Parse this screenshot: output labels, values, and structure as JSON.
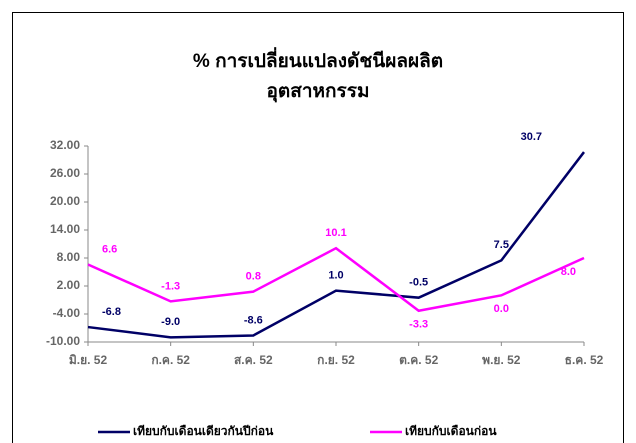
{
  "chart_data": {
    "type": "line",
    "title": [
      "% การเปลี่ยนแปลงดัชนีผลผลิต",
      "อุตสาหกรรม"
    ],
    "categories": [
      "มิ.ย. 52",
      "ก.ค. 52",
      "ส.ค. 52",
      "ก.ย. 52",
      "ต.ค. 52",
      "พ.ย. 52",
      "ธ.ค. 52"
    ],
    "series": [
      {
        "name": "เทียบกับเดือนเดียวกันปีก่อน",
        "color": "#000066",
        "values": [
          -6.8,
          -9.0,
          -8.6,
          1.0,
          -0.5,
          7.5,
          30.7
        ],
        "value_labels": [
          "-6.8",
          "-9.0",
          "-8.6",
          "1.0",
          "-0.5",
          "7.5",
          "30.7"
        ]
      },
      {
        "name": "เทียบกับเดือนก่อน",
        "color": "#ff00ff",
        "values": [
          6.6,
          -1.3,
          0.8,
          10.1,
          -3.3,
          0.0,
          8.0
        ],
        "value_labels": [
          "6.6",
          "-1.3",
          "0.8",
          "10.1",
          "-3.3",
          "0.0",
          "8.0"
        ]
      }
    ],
    "ylim": [
      -10,
      32
    ],
    "yticks": [
      {
        "value": -10,
        "label": "-10.00"
      },
      {
        "value": -4,
        "label": "-4.00"
      },
      {
        "value": 2,
        "label": "2.00"
      },
      {
        "value": 8,
        "label": "8.00"
      },
      {
        "value": 14,
        "label": "14.00"
      },
      {
        "value": 20,
        "label": "20.00"
      },
      {
        "value": 26,
        "label": "26.00"
      },
      {
        "value": 32,
        "label": "32.00"
      }
    ],
    "grid": false,
    "legend": "bottom"
  }
}
